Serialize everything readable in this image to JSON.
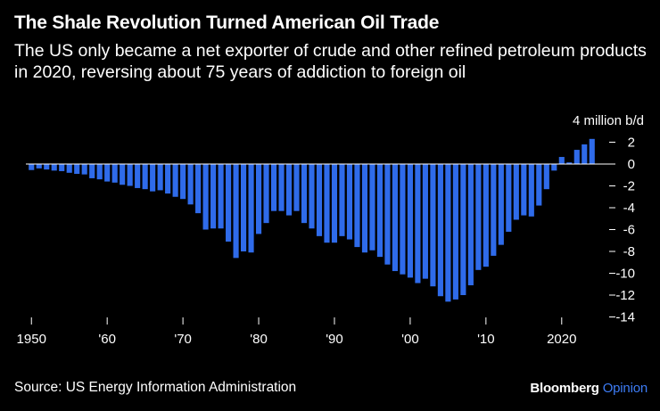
{
  "header": {
    "title": "The Shale Revolution Turned American Oil Trade",
    "subtitle": "The US only became a net exporter of crude and other refined petroleum products in 2020, reversing about 75 years of addiction to foreign oil"
  },
  "footer": {
    "source": "Source: US Energy Information Administration",
    "brand_main": "Bloomberg",
    "brand_accent": "Opinion"
  },
  "colors": {
    "background": "#000000",
    "bar": "#2f6bea",
    "text": "#ffffff",
    "zero_line": "#ffffff",
    "brand_accent": "#3d7cf5"
  },
  "chart_data": {
    "type": "bar",
    "title": "The Shale Revolution Turned American Oil Trade",
    "ylabel": "4 million b/d",
    "y_unit_label": "4 million b/d",
    "ylim": [
      -14,
      2.5
    ],
    "y_ticks": [
      2,
      0,
      -2,
      -4,
      -6,
      -8,
      -10,
      -12,
      -14
    ],
    "x_tick_labels": [
      {
        "year": 1950,
        "label": "1950"
      },
      {
        "year": 1960,
        "label": "'60"
      },
      {
        "year": 1970,
        "label": "'70"
      },
      {
        "year": 1980,
        "label": "'80"
      },
      {
        "year": 1990,
        "label": "'90"
      },
      {
        "year": 2000,
        "label": "'00"
      },
      {
        "year": 2010,
        "label": "'10"
      },
      {
        "year": 2020,
        "label": "2020"
      }
    ],
    "grid": false,
    "legend": "none",
    "series": [
      {
        "values": [
          {
            "x": 1950,
            "y": -0.55
          },
          {
            "x": 1951,
            "y": -0.4
          },
          {
            "x": 1952,
            "y": -0.5
          },
          {
            "x": 1953,
            "y": -0.6
          },
          {
            "x": 1954,
            "y": -0.65
          },
          {
            "x": 1955,
            "y": -0.8
          },
          {
            "x": 1956,
            "y": -0.9
          },
          {
            "x": 1957,
            "y": -0.95
          },
          {
            "x": 1958,
            "y": -1.3
          },
          {
            "x": 1959,
            "y": -1.4
          },
          {
            "x": 1960,
            "y": -1.6
          },
          {
            "x": 1961,
            "y": -1.7
          },
          {
            "x": 1962,
            "y": -1.9
          },
          {
            "x": 1963,
            "y": -2.0
          },
          {
            "x": 1964,
            "y": -2.2
          },
          {
            "x": 1965,
            "y": -2.3
          },
          {
            "x": 1966,
            "y": -2.5
          },
          {
            "x": 1967,
            "y": -2.4
          },
          {
            "x": 1968,
            "y": -2.7
          },
          {
            "x": 1969,
            "y": -3.0
          },
          {
            "x": 1970,
            "y": -3.2
          },
          {
            "x": 1971,
            "y": -3.7
          },
          {
            "x": 1972,
            "y": -4.5
          },
          {
            "x": 1973,
            "y": -6.0
          },
          {
            "x": 1974,
            "y": -5.9
          },
          {
            "x": 1975,
            "y": -5.9
          },
          {
            "x": 1976,
            "y": -7.1
          },
          {
            "x": 1977,
            "y": -8.6
          },
          {
            "x": 1978,
            "y": -8.0
          },
          {
            "x": 1979,
            "y": -8.1
          },
          {
            "x": 1980,
            "y": -6.4
          },
          {
            "x": 1981,
            "y": -5.4
          },
          {
            "x": 1982,
            "y": -4.3
          },
          {
            "x": 1983,
            "y": -4.3
          },
          {
            "x": 1984,
            "y": -4.7
          },
          {
            "x": 1985,
            "y": -4.3
          },
          {
            "x": 1986,
            "y": -5.4
          },
          {
            "x": 1987,
            "y": -5.9
          },
          {
            "x": 1988,
            "y": -6.6
          },
          {
            "x": 1989,
            "y": -7.2
          },
          {
            "x": 1990,
            "y": -7.2
          },
          {
            "x": 1991,
            "y": -6.6
          },
          {
            "x": 1992,
            "y": -6.9
          },
          {
            "x": 1993,
            "y": -7.6
          },
          {
            "x": 1994,
            "y": -8.1
          },
          {
            "x": 1995,
            "y": -7.9
          },
          {
            "x": 1996,
            "y": -8.5
          },
          {
            "x": 1997,
            "y": -9.2
          },
          {
            "x": 1998,
            "y": -9.8
          },
          {
            "x": 1999,
            "y": -10.1
          },
          {
            "x": 2000,
            "y": -10.4
          },
          {
            "x": 2001,
            "y": -10.9
          },
          {
            "x": 2002,
            "y": -10.5
          },
          {
            "x": 2003,
            "y": -11.2
          },
          {
            "x": 2004,
            "y": -12.1
          },
          {
            "x": 2005,
            "y": -12.6
          },
          {
            "x": 2006,
            "y": -12.4
          },
          {
            "x": 2007,
            "y": -12.0
          },
          {
            "x": 2008,
            "y": -11.1
          },
          {
            "x": 2009,
            "y": -9.7
          },
          {
            "x": 2010,
            "y": -9.4
          },
          {
            "x": 2011,
            "y": -8.4
          },
          {
            "x": 2012,
            "y": -7.4
          },
          {
            "x": 2013,
            "y": -6.2
          },
          {
            "x": 2014,
            "y": -5.1
          },
          {
            "x": 2015,
            "y": -4.7
          },
          {
            "x": 2016,
            "y": -4.8
          },
          {
            "x": 2017,
            "y": -3.8
          },
          {
            "x": 2018,
            "y": -2.3
          },
          {
            "x": 2019,
            "y": -0.6
          },
          {
            "x": 2020,
            "y": 0.65
          },
          {
            "x": 2021,
            "y": 0.15
          },
          {
            "x": 2022,
            "y": 1.3
          },
          {
            "x": 2023,
            "y": 1.8
          },
          {
            "x": 2024,
            "y": 2.3
          }
        ]
      }
    ]
  }
}
